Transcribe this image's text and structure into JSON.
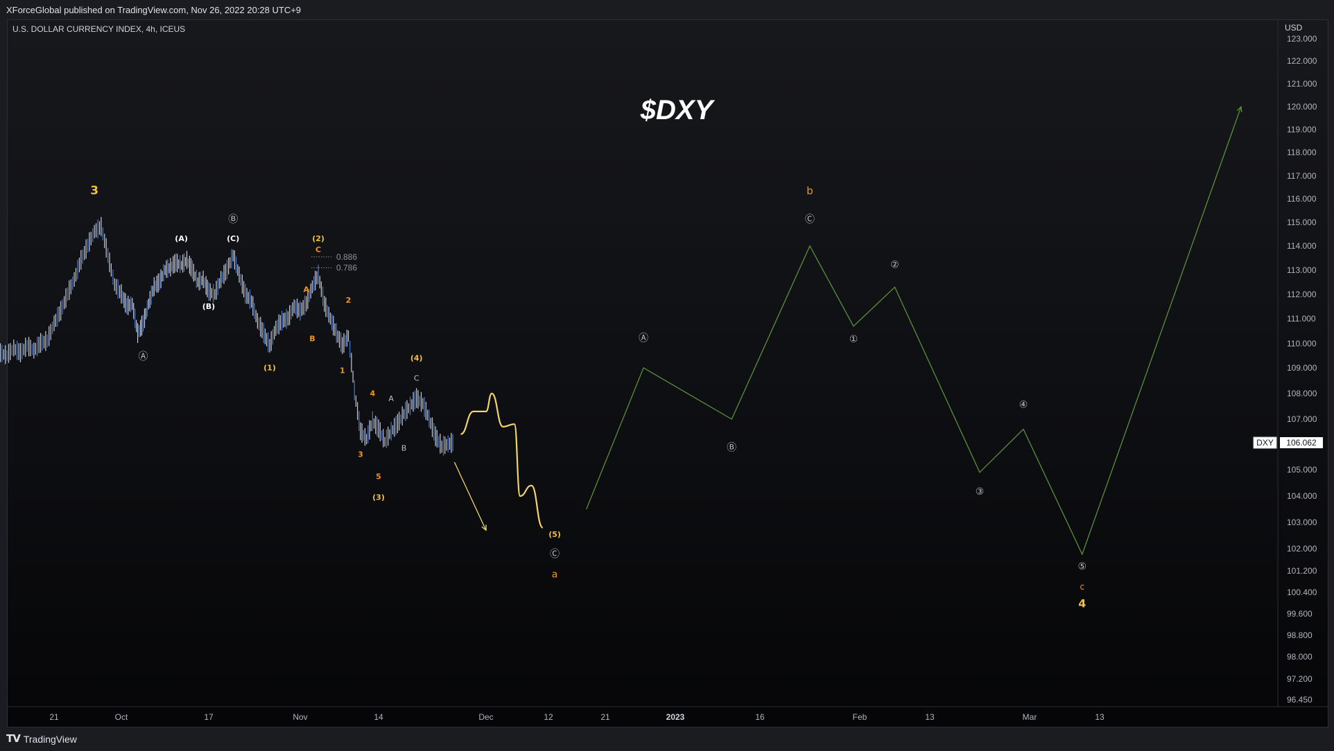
{
  "header": {
    "published": "XForceGlobal published on TradingView.com, Nov 26, 2022 20:28 UTC+9"
  },
  "footer": {
    "brand": "TradingView"
  },
  "chart_data": {
    "type": "line",
    "symbol_line": "U.S. DOLLAR CURRENCY INDEX, 4h, ICEUS",
    "title": "$DXY",
    "currency": "USD",
    "price_tag": {
      "name": "DXY",
      "value": "106.062"
    },
    "y_ticks": [
      "123.000",
      "122.000",
      "121.000",
      "120.000",
      "119.000",
      "118.000",
      "117.000",
      "116.000",
      "115.000",
      "114.000",
      "113.000",
      "112.000",
      "111.000",
      "110.000",
      "109.000",
      "108.000",
      "107.000",
      "105.000",
      "104.000",
      "103.000",
      "102.000",
      "101.200",
      "100.400",
      "99.600",
      "98.800",
      "98.000",
      "97.200",
      "96.450"
    ],
    "x_ticks": [
      {
        "label": "21",
        "date": "2022-09-21"
      },
      {
        "label": "Oct",
        "date": "2022-10-01"
      },
      {
        "label": "17",
        "date": "2022-10-17"
      },
      {
        "label": "Nov",
        "date": "2022-11-01"
      },
      {
        "label": "14",
        "date": "2022-11-14"
      },
      {
        "label": "Dec",
        "date": "2022-12-01"
      },
      {
        "label": "12",
        "date": "2022-12-12"
      },
      {
        "label": "21",
        "date": "2022-12-21"
      },
      {
        "label": "2023",
        "date": "2023-01-01",
        "bold": true
      },
      {
        "label": "16",
        "date": "2023-01-16"
      },
      {
        "label": "Feb",
        "date": "2023-02-01"
      },
      {
        "label": "13",
        "date": "2023-02-13"
      },
      {
        "label": "Mar",
        "date": "2023-03-01"
      },
      {
        "label": "13",
        "date": "2023-03-13"
      }
    ],
    "price_series": {
      "name": "DXY",
      "points": [
        [
          "2022-09-08",
          108.2
        ],
        [
          "2022-09-09",
          109.3
        ],
        [
          "2022-09-10",
          109.8
        ],
        [
          "2022-09-12",
          109.4
        ],
        [
          "2022-09-13",
          109.6
        ],
        [
          "2022-09-14",
          109.5
        ],
        [
          "2022-09-15",
          109.8
        ],
        [
          "2022-09-16",
          109.6
        ],
        [
          "2022-09-17",
          109.9
        ],
        [
          "2022-09-18",
          109.7
        ],
        [
          "2022-09-19",
          110.0
        ],
        [
          "2022-09-20",
          110.1
        ],
        [
          "2022-09-21",
          110.8
        ],
        [
          "2022-09-22",
          111.3
        ],
        [
          "2022-09-23",
          112.0
        ],
        [
          "2022-09-24",
          112.6
        ],
        [
          "2022-09-25",
          113.4
        ],
        [
          "2022-09-26",
          114.0
        ],
        [
          "2022-09-27",
          114.6
        ],
        [
          "2022-09-28",
          114.8
        ],
        [
          "2022-09-29",
          113.6
        ],
        [
          "2022-09-30",
          112.4
        ],
        [
          "2022-10-01",
          112.0
        ],
        [
          "2022-10-02",
          111.5
        ],
        [
          "2022-10-03",
          111.6
        ],
        [
          "2022-10-04",
          110.4
        ],
        [
          "2022-10-05",
          110.8
        ],
        [
          "2022-10-06",
          111.6
        ],
        [
          "2022-10-07",
          112.3
        ],
        [
          "2022-10-08",
          112.5
        ],
        [
          "2022-10-09",
          113.0
        ],
        [
          "2022-10-10",
          113.1
        ],
        [
          "2022-10-11",
          113.3
        ],
        [
          "2022-10-12",
          113.2
        ],
        [
          "2022-10-13",
          113.4
        ],
        [
          "2022-10-14",
          113.0
        ],
        [
          "2022-10-15",
          112.5
        ],
        [
          "2022-10-16",
          112.6
        ],
        [
          "2022-10-17",
          112.1
        ],
        [
          "2022-10-18",
          112.0
        ],
        [
          "2022-10-19",
          112.6
        ],
        [
          "2022-10-20",
          113.0
        ],
        [
          "2022-10-21",
          113.6
        ],
        [
          "2022-10-22",
          112.8
        ],
        [
          "2022-10-23",
          112.0
        ],
        [
          "2022-10-24",
          111.7
        ],
        [
          "2022-10-25",
          110.9
        ],
        [
          "2022-10-26",
          110.4
        ],
        [
          "2022-10-27",
          109.9
        ],
        [
          "2022-10-28",
          110.6
        ],
        [
          "2022-10-29",
          110.9
        ],
        [
          "2022-10-30",
          111.0
        ],
        [
          "2022-10-31",
          111.5
        ],
        [
          "2022-11-01",
          111.3
        ],
        [
          "2022-11-02",
          111.6
        ],
        [
          "2022-11-03",
          112.3
        ],
        [
          "2022-11-04",
          112.8
        ],
        [
          "2022-11-05",
          111.6
        ],
        [
          "2022-11-06",
          111.0
        ],
        [
          "2022-11-07",
          110.4
        ],
        [
          "2022-11-08",
          109.9
        ],
        [
          "2022-11-09",
          110.3
        ],
        [
          "2022-11-10",
          108.1
        ],
        [
          "2022-11-11",
          106.5
        ],
        [
          "2022-11-12",
          106.2
        ],
        [
          "2022-11-13",
          106.9
        ],
        [
          "2022-11-14",
          106.6
        ],
        [
          "2022-11-15",
          106.1
        ],
        [
          "2022-11-16",
          106.5
        ],
        [
          "2022-11-17",
          106.8
        ],
        [
          "2022-11-18",
          107.2
        ],
        [
          "2022-11-19",
          107.5
        ],
        [
          "2022-11-20",
          107.8
        ],
        [
          "2022-11-21",
          107.6
        ],
        [
          "2022-11-22",
          107.0
        ],
        [
          "2022-11-23",
          106.3
        ],
        [
          "2022-11-24",
          105.9
        ],
        [
          "2022-11-25",
          106.0
        ],
        [
          "2022-11-26",
          106.062
        ]
      ]
    },
    "projections": [
      {
        "name": "projection-green",
        "color": "#5a8f3c",
        "points": [
          [
            "2022-12-18",
            103.5
          ],
          [
            "2022-12-27",
            109.0
          ],
          [
            "2023-01-11",
            107.0
          ],
          [
            "2023-01-24",
            114.0
          ],
          [
            "2023-01-31",
            110.7
          ],
          [
            "2023-02-07",
            112.3
          ],
          [
            "2023-02-21",
            104.9
          ],
          [
            "2023-02-28",
            106.6
          ],
          [
            "2023-03-10",
            101.8
          ],
          [
            "2023-04-01",
            120.0
          ]
        ]
      },
      {
        "name": "projection-yellow-swing",
        "color": "#f3d56a",
        "points": [
          [
            "2022-11-27",
            106.4
          ],
          [
            "2022-11-29",
            107.3
          ],
          [
            "2022-12-01",
            107.3
          ],
          [
            "2022-12-02",
            108.0
          ],
          [
            "2022-12-04",
            106.7
          ],
          [
            "2022-12-06",
            106.8
          ],
          [
            "2022-12-07",
            104.0
          ],
          [
            "2022-12-09",
            104.4
          ],
          [
            "2022-12-11",
            102.8
          ]
        ]
      },
      {
        "name": "projection-yellow-arrow",
        "color": "#f3d56a",
        "points": [
          [
            "2022-11-26",
            105.3
          ],
          [
            "2022-12-01",
            102.7
          ]
        ]
      }
    ],
    "fib_levels": [
      {
        "label": "0.886",
        "price": 113.55
      },
      {
        "label": "0.786",
        "price": 113.1
      }
    ],
    "wave_labels": [
      {
        "text": "3",
        "date": "2022-09-27",
        "price": 116.2,
        "color": "#f3c13a",
        "size": 17,
        "bold": true
      },
      {
        "text": "(A)",
        "date": "2022-10-12",
        "price": 114.2,
        "color": "#ffffff",
        "size": 11,
        "bold": true
      },
      {
        "text": "Ⓑ",
        "date": "2022-10-21",
        "price": 115.0,
        "color": "#bfbfbf",
        "size": 14
      },
      {
        "text": "(C)",
        "date": "2022-10-21",
        "price": 114.2,
        "color": "#ffffff",
        "size": 11,
        "bold": true
      },
      {
        "text": "(2)",
        "date": "2022-11-04",
        "price": 114.2,
        "color": "#f3c13a",
        "size": 11,
        "bold": true
      },
      {
        "text": "C",
        "date": "2022-11-04",
        "price": 113.75,
        "color": "#f7931a",
        "size": 11,
        "bold": true
      },
      {
        "text": "A",
        "date": "2022-11-02",
        "price": 112.1,
        "color": "#f7931a",
        "size": 11,
        "bold": true
      },
      {
        "text": "2",
        "date": "2022-11-09",
        "price": 111.65,
        "color": "#f7931a",
        "size": 11,
        "bold": true
      },
      {
        "text": "(B)",
        "date": "2022-10-17",
        "price": 111.4,
        "color": "#ffffff",
        "size": 11,
        "bold": true
      },
      {
        "text": "B",
        "date": "2022-11-03",
        "price": 110.1,
        "color": "#f7931a",
        "size": 11,
        "bold": true
      },
      {
        "text": "Ⓐ",
        "date": "2022-10-05",
        "price": 109.35,
        "color": "#bfbfbf",
        "size": 14
      },
      {
        "text": "(1)",
        "date": "2022-10-27",
        "price": 108.9,
        "color": "#f3c13a",
        "size": 11,
        "bold": true
      },
      {
        "text": "1",
        "date": "2022-11-08",
        "price": 108.8,
        "color": "#f7931a",
        "size": 11,
        "bold": true
      },
      {
        "text": "(4)",
        "date": "2022-11-20",
        "price": 109.3,
        "color": "#f3c13a",
        "size": 11,
        "bold": true
      },
      {
        "text": "C",
        "date": "2022-11-20",
        "price": 108.5,
        "color": "#bfbfbf",
        "size": 11
      },
      {
        "text": "4",
        "date": "2022-11-13",
        "price": 107.9,
        "color": "#f7931a",
        "size": 11,
        "bold": true
      },
      {
        "text": "A",
        "date": "2022-11-16",
        "price": 107.7,
        "color": "#bfbfbf",
        "size": 11
      },
      {
        "text": "B",
        "date": "2022-11-18",
        "price": 105.75,
        "color": "#bfbfbf",
        "size": 11
      },
      {
        "text": "3",
        "date": "2022-11-11",
        "price": 105.5,
        "color": "#f7931a",
        "size": 11,
        "bold": true
      },
      {
        "text": "5",
        "date": "2022-11-14",
        "price": 104.65,
        "color": "#f7931a",
        "size": 11,
        "bold": true
      },
      {
        "text": "(3)",
        "date": "2022-11-14",
        "price": 103.85,
        "color": "#f3c13a",
        "size": 11,
        "bold": true
      },
      {
        "text": "(5)",
        "date": "2022-12-13",
        "price": 102.45,
        "color": "#f3c13a",
        "size": 11,
        "bold": true
      },
      {
        "text": "Ⓒ",
        "date": "2022-12-13",
        "price": 101.7,
        "color": "#bfbfbf",
        "size": 14
      },
      {
        "text": "a",
        "date": "2022-12-13",
        "price": 100.95,
        "color": "#f7931a",
        "size": 14
      },
      {
        "text": "Ⓐ",
        "date": "2022-12-27",
        "price": 110.1,
        "color": "#bfbfbf",
        "size": 14
      },
      {
        "text": "Ⓑ",
        "date": "2023-01-11",
        "price": 105.75,
        "color": "#bfbfbf",
        "size": 14
      },
      {
        "text": "b",
        "date": "2023-01-24",
        "price": 116.2,
        "color": "#f7931a",
        "size": 15
      },
      {
        "text": "Ⓒ",
        "date": "2023-01-24",
        "price": 115.0,
        "color": "#bfbfbf",
        "size": 14
      },
      {
        "text": "①",
        "date": "2023-01-31",
        "price": 110.05,
        "color": "#bfbfbf",
        "size": 14
      },
      {
        "text": "②",
        "date": "2023-02-07",
        "price": 113.1,
        "color": "#bfbfbf",
        "size": 14
      },
      {
        "text": "③",
        "date": "2023-02-21",
        "price": 104.05,
        "color": "#bfbfbf",
        "size": 14
      },
      {
        "text": "④",
        "date": "2023-02-28",
        "price": 107.45,
        "color": "#bfbfbf",
        "size": 14
      },
      {
        "text": "⑤",
        "date": "2023-03-10",
        "price": 101.25,
        "color": "#bfbfbf",
        "size": 14
      },
      {
        "text": "c",
        "date": "2023-03-10",
        "price": 100.5,
        "color": "#f7931a",
        "size": 12
      },
      {
        "text": "4",
        "date": "2023-03-10",
        "price": 99.85,
        "color": "#f3c13a",
        "size": 16,
        "bold": true
      }
    ]
  }
}
